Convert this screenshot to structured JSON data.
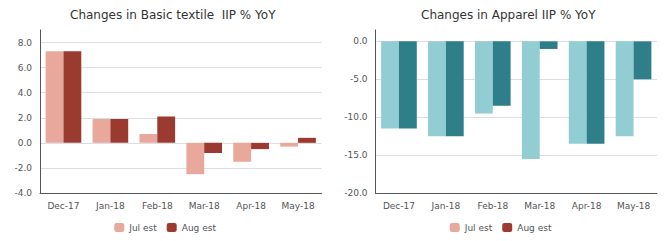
{
  "chart_data": [
    {
      "type": "bar",
      "title": "Changes in Basic textile  IIP % YoY",
      "categories": [
        "Dec-17",
        "Jan-18",
        "Feb-18",
        "Mar-18",
        "Apr-18",
        "May-18"
      ],
      "series": [
        {
          "name": "Jul est",
          "color": "#e8a89c",
          "values": [
            7.3,
            1.9,
            0.7,
            -2.5,
            -1.5,
            -0.3
          ]
        },
        {
          "name": "Aug est",
          "color": "#9b3a2e",
          "values": [
            7.3,
            1.9,
            2.1,
            -0.8,
            -0.5,
            0.4
          ]
        }
      ],
      "ylim": [
        -4.0,
        9.0
      ],
      "yticks": [
        {
          "value": -4,
          "label": "-4.0"
        },
        {
          "value": -2,
          "label": "-2.0"
        },
        {
          "value": 0,
          "label": "0.0"
        },
        {
          "value": 2,
          "label": "2.0"
        },
        {
          "value": 4,
          "label": "4.0"
        },
        {
          "value": 6,
          "label": "6.0"
        },
        {
          "value": 8,
          "label": "8.0"
        }
      ],
      "grid": true,
      "legend": "bottom"
    },
    {
      "type": "bar",
      "title": "Changes in Apparel IIP % YoY",
      "categories": [
        "Dec-17",
        "Jan-18",
        "Feb-18",
        "Mar-18",
        "Apr-18",
        "May-18"
      ],
      "series": [
        {
          "name": "Jul est",
          "color": "#92cdd4",
          "values": [
            -11.5,
            -12.5,
            -9.5,
            -15.5,
            -13.5,
            -12.5
          ]
        },
        {
          "name": "Aug est",
          "color": "#2e7f8a",
          "values": [
            -11.5,
            -12.5,
            -8.5,
            -1.0,
            -13.5,
            -5.0
          ]
        }
      ],
      "ylim": [
        -20.0,
        1.5
      ],
      "yticks": [
        {
          "value": -20,
          "label": "-20.0"
        },
        {
          "value": -15,
          "label": "-15.0"
        },
        {
          "value": -10,
          "label": "-10.0"
        },
        {
          "value": -5,
          "label": "-5.0"
        },
        {
          "value": 0,
          "label": "0.0"
        }
      ],
      "grid": true,
      "legend": "bottom"
    }
  ]
}
